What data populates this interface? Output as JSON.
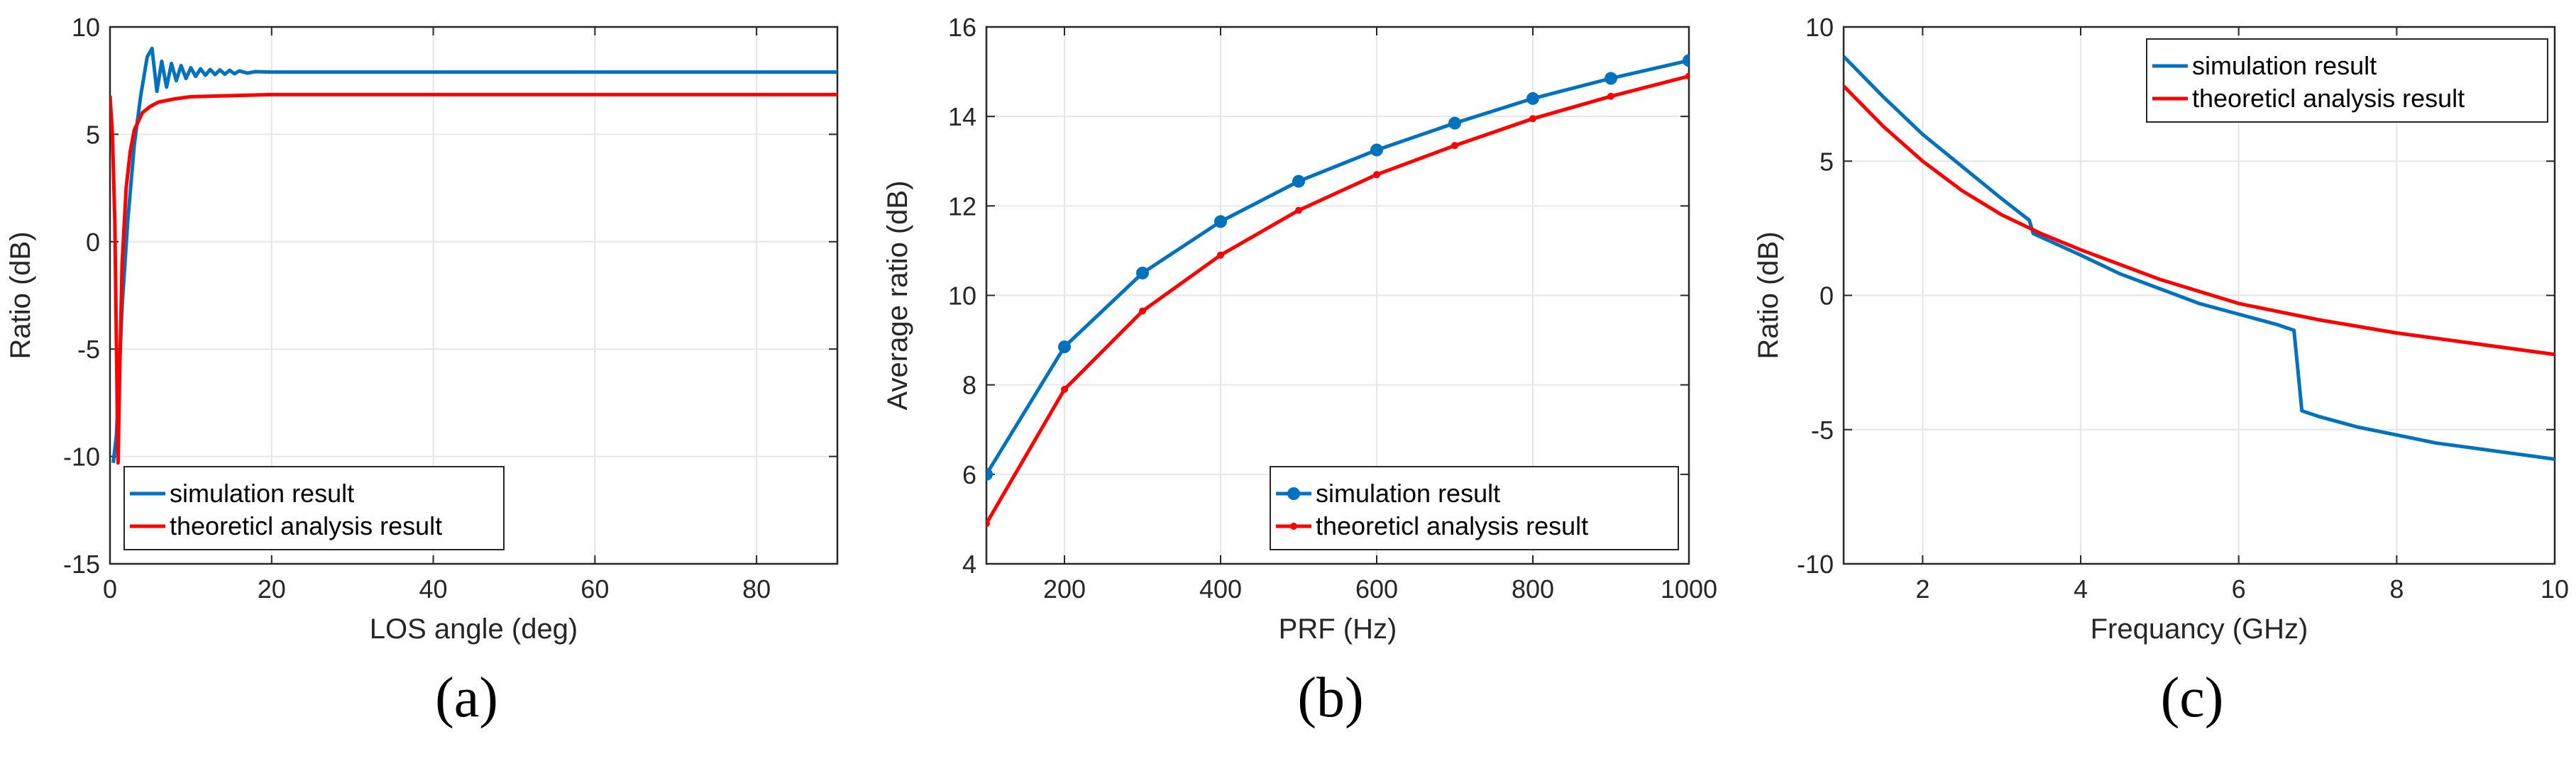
{
  "colors": {
    "simulation": "#0072bd",
    "theory": "#ff0000",
    "grid": "#e6e6e6",
    "axis": "#262626"
  },
  "chart_data": [
    {
      "type": "line",
      "panel_label": "(a)",
      "xlabel": "LOS angle (deg)",
      "ylabel": "Ratio (dB)",
      "xlim": [
        0,
        90
      ],
      "ylim": [
        -15,
        10
      ],
      "xticks": [
        0,
        20,
        40,
        60,
        80
      ],
      "yticks": [
        -15,
        -10,
        -5,
        0,
        5,
        10
      ],
      "grid": true,
      "legend_position": "bottom-left",
      "series": [
        {
          "name": "simulation result",
          "color": "#0072bd",
          "markers": false,
          "x": [
            0.4,
            0.8,
            1.5,
            2.2,
            3.0,
            3.8,
            4.6,
            5.2,
            5.8,
            6.4,
            7.0,
            7.6,
            8.2,
            8.8,
            9.4,
            10.0,
            10.6,
            11.2,
            11.8,
            12.4,
            13.0,
            13.6,
            14.2,
            14.8,
            15.4,
            16.0,
            17.0,
            18.0,
            20,
            30,
            40,
            50,
            60,
            70,
            80,
            90
          ],
          "y": [
            -10.3,
            -9.0,
            -3.0,
            1.0,
            4.5,
            6.8,
            8.6,
            9.0,
            7.0,
            8.4,
            7.2,
            8.3,
            7.5,
            8.2,
            7.6,
            8.1,
            7.7,
            8.05,
            7.75,
            8.02,
            7.78,
            8.0,
            7.8,
            7.98,
            7.82,
            7.95,
            7.85,
            7.92,
            7.9,
            7.9,
            7.9,
            7.9,
            7.9,
            7.9,
            7.9,
            7.9
          ]
        },
        {
          "name": "theoreticl analysis result",
          "color": "#ff0000",
          "markers": false,
          "x": [
            0,
            0.3,
            0.6,
            0.9,
            1.0,
            1.2,
            1.5,
            2.0,
            2.5,
            3.0,
            4.0,
            5.0,
            6.0,
            8.0,
            10,
            15,
            20,
            30,
            40,
            50,
            60,
            70,
            80,
            90
          ],
          "y": [
            6.8,
            5.0,
            1.0,
            -8.0,
            -10.3,
            -6.0,
            -1.0,
            2.5,
            4.2,
            5.2,
            6.0,
            6.3,
            6.5,
            6.65,
            6.75,
            6.8,
            6.85,
            6.85,
            6.85,
            6.85,
            6.85,
            6.85,
            6.85,
            6.85
          ]
        }
      ]
    },
    {
      "type": "line",
      "panel_label": "(b)",
      "xlabel": "PRF (Hz)",
      "ylabel": "Average ratio (dB)",
      "xlim": [
        100,
        1000
      ],
      "ylim": [
        4,
        16
      ],
      "xticks": [
        200,
        400,
        600,
        800,
        1000
      ],
      "yticks": [
        4,
        6,
        8,
        10,
        12,
        14,
        16
      ],
      "grid": true,
      "legend_position": "bottom-right",
      "series": [
        {
          "name": "simulation result",
          "color": "#0072bd",
          "markers": true,
          "x": [
            100,
            200,
            300,
            400,
            500,
            600,
            700,
            800,
            900,
            1000
          ],
          "y": [
            6.0,
            8.85,
            10.5,
            11.65,
            12.55,
            13.25,
            13.85,
            14.4,
            14.85,
            15.25
          ]
        },
        {
          "name": "theoreticl analysis result",
          "color": "#ff0000",
          "markers": true,
          "x": [
            100,
            200,
            300,
            400,
            500,
            600,
            700,
            800,
            900,
            1000
          ],
          "y": [
            4.9,
            7.9,
            9.65,
            10.9,
            11.9,
            12.7,
            13.35,
            13.95,
            14.45,
            14.9
          ]
        }
      ]
    },
    {
      "type": "line",
      "panel_label": "(c)",
      "xlabel": "Frequancy (GHz)",
      "ylabel": "Ratio (dB)",
      "xlim": [
        1,
        10
      ],
      "ylim": [
        -10,
        10
      ],
      "xticks": [
        2,
        4,
        6,
        8,
        10
      ],
      "yticks": [
        -10,
        -5,
        0,
        5,
        10
      ],
      "grid": true,
      "legend_position": "top-right",
      "series": [
        {
          "name": "simulation result",
          "color": "#0072bd",
          "markers": false,
          "x": [
            1.0,
            1.5,
            2.0,
            2.5,
            3.0,
            3.35,
            3.4,
            4.0,
            4.5,
            5.0,
            5.5,
            6.0,
            6.5,
            6.7,
            6.8,
            7.0,
            7.5,
            8.0,
            8.5,
            9.0,
            9.5,
            10.0
          ],
          "y": [
            8.9,
            7.4,
            6.0,
            4.8,
            3.6,
            2.8,
            2.3,
            1.5,
            0.8,
            0.25,
            -0.3,
            -0.7,
            -1.1,
            -1.3,
            -4.3,
            -4.5,
            -4.9,
            -5.2,
            -5.5,
            -5.7,
            -5.9,
            -6.1
          ]
        },
        {
          "name": "theoreticl analysis result",
          "color": "#ff0000",
          "markers": false,
          "x": [
            1.0,
            1.5,
            2.0,
            2.5,
            3.0,
            3.5,
            4.0,
            5.0,
            6.0,
            7.0,
            8.0,
            9.0,
            10.0
          ],
          "y": [
            7.8,
            6.3,
            5.0,
            3.9,
            3.0,
            2.3,
            1.7,
            0.6,
            -0.3,
            -0.9,
            -1.4,
            -1.8,
            -2.2
          ]
        }
      ]
    }
  ]
}
